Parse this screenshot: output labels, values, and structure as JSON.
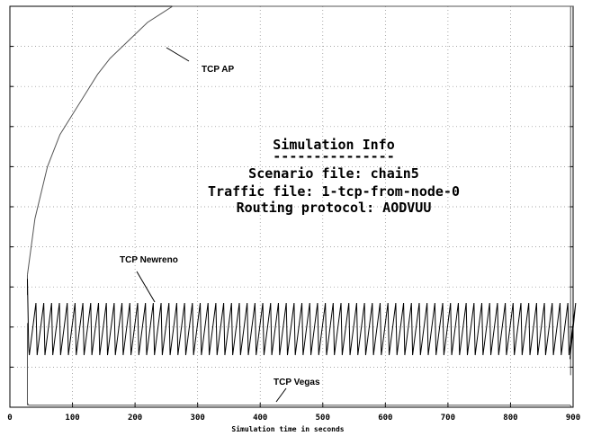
{
  "chart_data": {
    "type": "line",
    "title": "",
    "xlabel": "Simulation time in seconds",
    "ylabel": "",
    "xlim": [
      0,
      900
    ],
    "ylim": [
      0,
      10
    ],
    "x_ticks": [
      0,
      100,
      200,
      300,
      400,
      500,
      600,
      700,
      800,
      900
    ],
    "grid": true,
    "info_box": {
      "title": "Simulation Info",
      "separator": "---------------",
      "lines": [
        "Scenario file: chain5",
        "Traffic file: 1-tcp-from-node-0",
        "Routing protocol: AODVUU"
      ]
    },
    "series": [
      {
        "name": "TCP AP",
        "x": [
          28,
          40,
          60,
          80,
          100,
          120,
          140,
          160,
          180,
          200,
          220,
          240,
          260,
          280,
          900
        ],
        "y": [
          3.3,
          4.7,
          6.0,
          6.8,
          7.3,
          7.8,
          8.3,
          8.7,
          9.0,
          9.3,
          9.6,
          9.8,
          10.0,
          10.0,
          10.0
        ]
      },
      {
        "name": "TCP Newreno",
        "x_start": 28,
        "x_end": 895,
        "cycle_period": 12.5,
        "y_peak": 2.6,
        "y_trough": 1.3
      },
      {
        "name": "TCP Vegas",
        "x": [
          28,
          30,
          895,
          898
        ],
        "y": [
          0.1,
          0.05,
          0.05,
          0.0
        ]
      }
    ]
  }
}
